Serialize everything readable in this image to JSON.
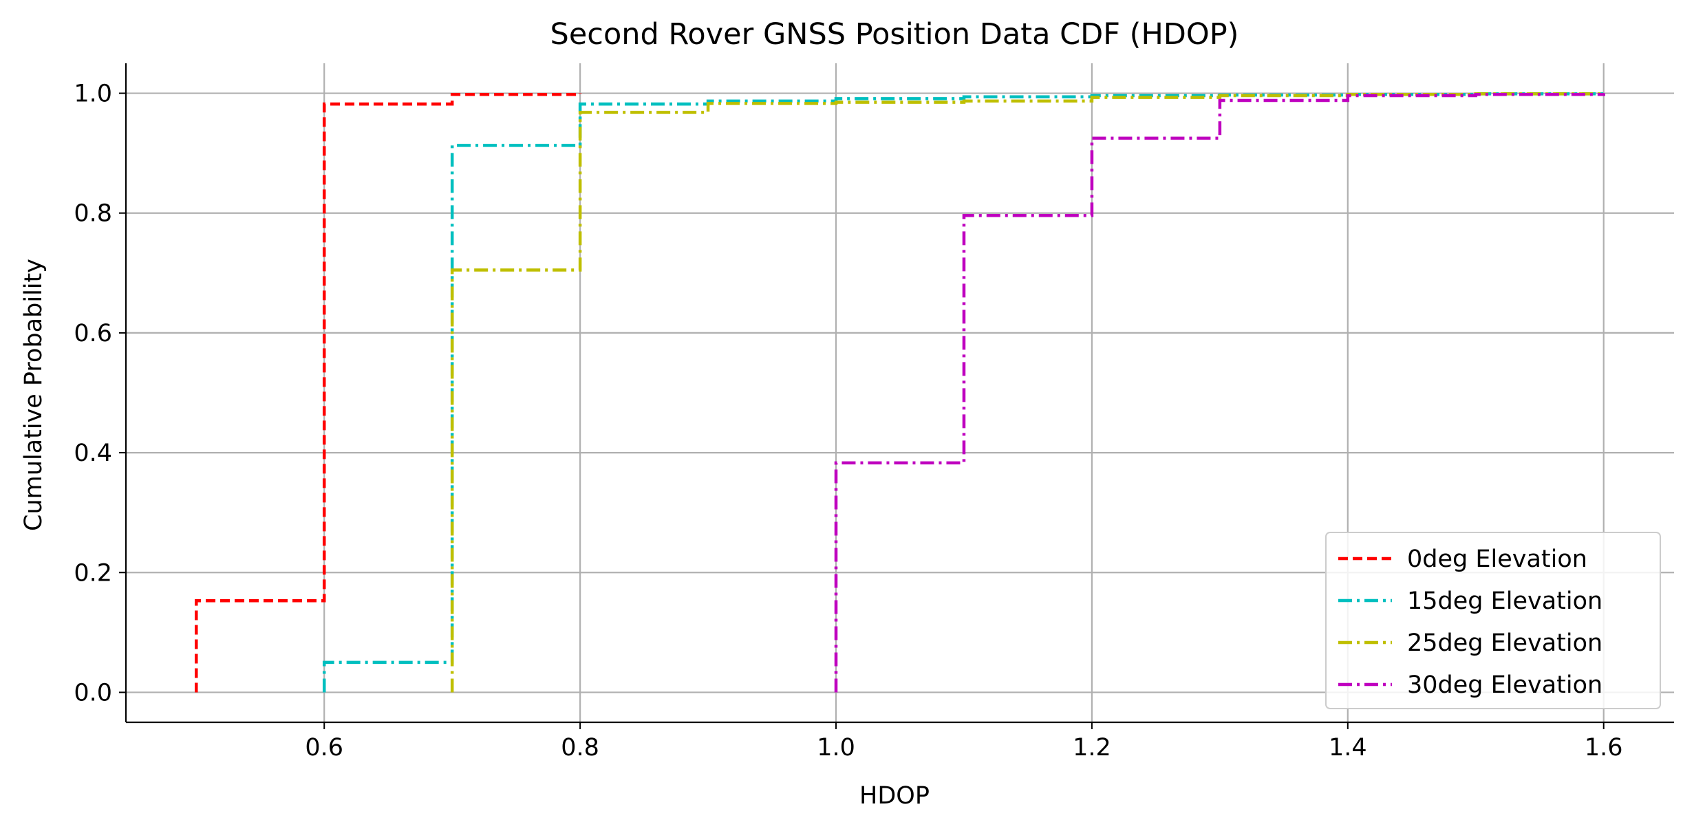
{
  "chart_data": {
    "type": "line",
    "title": "Second Rover GNSS Position Data CDF (HDOP)",
    "xlabel": "HDOP",
    "ylabel": "Cumulative Probability",
    "xlim": [
      0.445,
      1.655
    ],
    "ylim": [
      -0.05,
      1.05
    ],
    "xticks": [
      0.6,
      0.8,
      1.0,
      1.2,
      1.4,
      1.6
    ],
    "xtick_labels": [
      "0.6",
      "0.8",
      "1.0",
      "1.2",
      "1.4",
      "1.6"
    ],
    "yticks": [
      0.0,
      0.2,
      0.4,
      0.6,
      0.8,
      1.0
    ],
    "ytick_labels": [
      "0.0",
      "0.2",
      "0.4",
      "0.6",
      "0.8",
      "1.0"
    ],
    "grid": true,
    "legend_position": "lower-right",
    "step": "post",
    "series": [
      {
        "name": "0deg Elevation",
        "color": "#ff0000",
        "dash": "dashed",
        "x": [
          0.5,
          0.6,
          0.7,
          0.8
        ],
        "y": [
          0.153,
          0.982,
          0.998,
          1.0
        ]
      },
      {
        "name": "15deg Elevation",
        "color": "#00bfbf",
        "dash": "dashdot",
        "x": [
          0.6,
          0.7,
          0.8,
          0.9,
          1.0,
          1.1,
          1.2,
          1.3,
          1.4,
          1.5,
          1.6
        ],
        "y": [
          0.05,
          0.913,
          0.982,
          0.987,
          0.991,
          0.994,
          0.996,
          0.997,
          0.998,
          0.999,
          1.0
        ]
      },
      {
        "name": "25deg Elevation",
        "color": "#bfbf00",
        "dash": "dashdot",
        "x": [
          0.7,
          0.8,
          0.9,
          1.0,
          1.1,
          1.2,
          1.3,
          1.4,
          1.5,
          1.6
        ],
        "y": [
          0.705,
          0.968,
          0.983,
          0.985,
          0.987,
          0.993,
          0.996,
          0.998,
          0.999,
          1.0
        ]
      },
      {
        "name": "30deg Elevation",
        "color": "#bf00bf",
        "dash": "dashdot",
        "x": [
          1.0,
          1.1,
          1.2,
          1.3,
          1.4,
          1.5,
          1.6
        ],
        "y": [
          0.383,
          0.796,
          0.925,
          0.988,
          0.996,
          0.998,
          1.0
        ]
      }
    ]
  }
}
